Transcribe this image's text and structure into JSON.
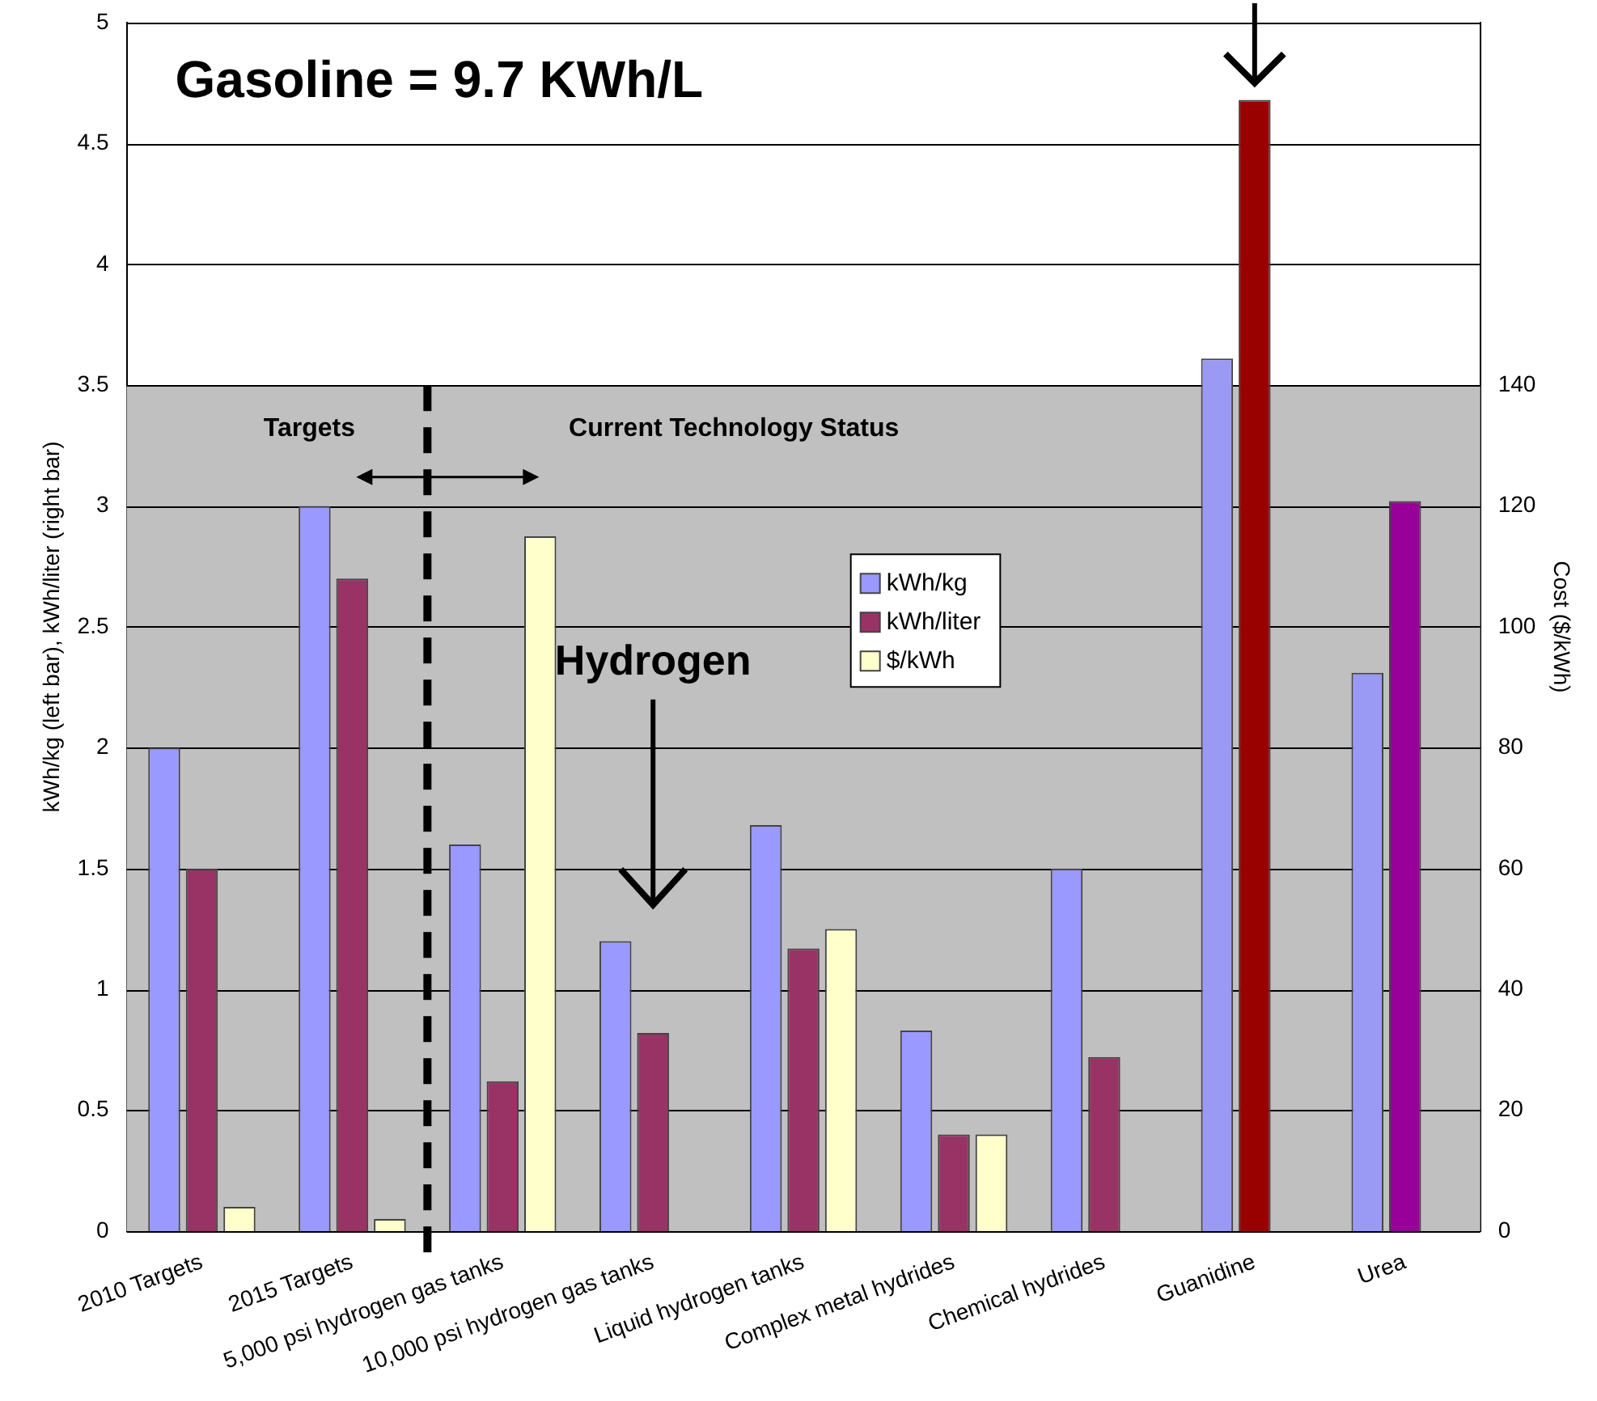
{
  "chart_data": {
    "type": "bar",
    "categories": [
      "2010 Targets",
      "2015 Targets",
      "5,000 psi hydrogen gas tanks",
      "10,000 psi hydrogen gas tanks",
      "Liquid hydrogen tanks",
      "Complex metal hydrides",
      "Chemical hydrides",
      "Guanidine",
      "Urea"
    ],
    "series": [
      {
        "name": "kWh/kg",
        "color": "#9999ff",
        "colors": [
          "#9999ff",
          "#9999ff",
          "#9999ff",
          "#9999ff",
          "#9999ff",
          "#9999ff",
          "#9999ff",
          "#9a9af5",
          "#9a9af5"
        ],
        "values": [
          2.0,
          3.0,
          1.6,
          1.2,
          1.68,
          0.83,
          1.5,
          3.61,
          2.31
        ]
      },
      {
        "name": "kWh/liter",
        "color": "#993366",
        "colors": [
          "#993366",
          "#993366",
          "#993366",
          "#993366",
          "#993366",
          "#993366",
          "#993366",
          "#990000",
          "#990099"
        ],
        "values": [
          1.5,
          2.7,
          0.62,
          0.82,
          1.17,
          0.4,
          0.72,
          4.68,
          3.02
        ]
      },
      {
        "name": "$/kWh",
        "color": "#ffffcc",
        "axis": "y2",
        "values": [
          4,
          2,
          115,
          null,
          50,
          16,
          null,
          null,
          null
        ]
      }
    ],
    "ylabel": "kWh/kg (left bar), kWh/liter (right bar)",
    "y2label": "Cost ($/kWh)",
    "ylim": [
      0,
      5
    ],
    "yticks": [
      0,
      0.5,
      1,
      1.5,
      2,
      2.5,
      3,
      3.5,
      4,
      4.5,
      5
    ],
    "y2lim": [
      0,
      200
    ],
    "y2ticks": [
      0,
      20,
      40,
      60,
      80,
      100,
      120,
      140
    ],
    "bands": [
      {
        "axis": "y",
        "from": 0,
        "to": 3.5,
        "color": "#c0c0c0"
      }
    ],
    "annotations": [
      "Gasoline = 9.7 KWh/L",
      "Targets",
      "Current Technology Status",
      "Hydrogen"
    ],
    "grid": "y",
    "legend": "center"
  }
}
